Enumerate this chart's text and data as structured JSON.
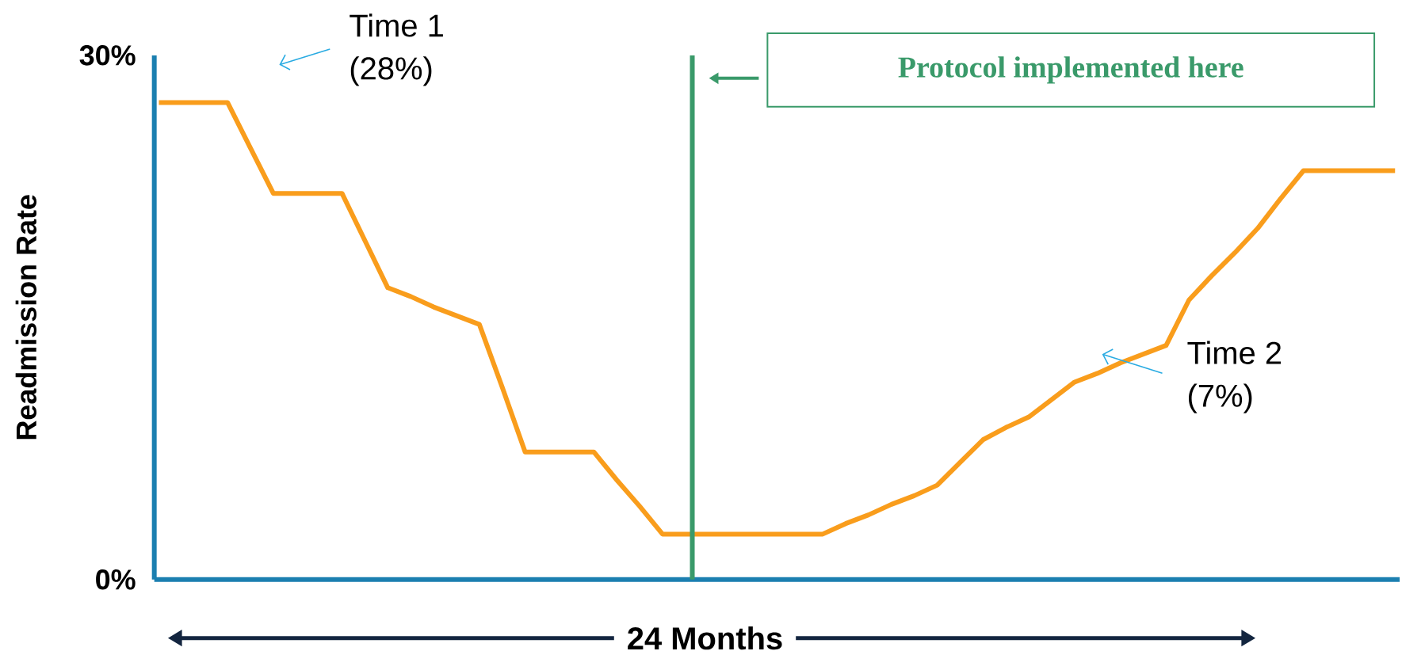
{
  "chart_data": {
    "type": "line",
    "ylabel": "Readmission Rate",
    "xlabel": "24 Months",
    "ylim": [
      0,
      30
    ],
    "tick_labels": "y",
    "yticks": [
      {
        "value": 0,
        "label": "0%"
      },
      {
        "value": 30,
        "label": "30%"
      }
    ],
    "categories": [
      null,
      null,
      null,
      null,
      null,
      null,
      null,
      null,
      null,
      null,
      null,
      null,
      null,
      null,
      null,
      null,
      null,
      null,
      null,
      null,
      null,
      null,
      null,
      null,
      null,
      null,
      null,
      null,
      null,
      null,
      null,
      null,
      null,
      null,
      null,
      null,
      null,
      null,
      null,
      null,
      null,
      null,
      null,
      null,
      null,
      null,
      null,
      null,
      null,
      null,
      null,
      null,
      null,
      null,
      null
    ],
    "series": [
      {
        "color": "#f99d1c",
        "values": [
          27.3,
          27.3,
          27.3,
          27.3,
          24.7,
          22.1,
          22.1,
          22.1,
          22.1,
          19.4,
          16.7,
          16.2,
          15.6,
          15.1,
          14.6,
          11.0,
          7.3,
          7.3,
          7.3,
          7.3,
          5.7,
          4.2,
          2.6,
          2.6,
          2.6,
          2.6,
          2.6,
          2.6,
          2.6,
          2.6,
          3.2,
          3.7,
          4.3,
          4.8,
          5.4,
          6.7,
          8.0,
          8.7,
          9.3,
          10.3,
          11.3,
          11.8,
          12.4,
          12.9,
          13.4,
          16.0,
          17.4,
          18.7,
          20.1,
          21.8,
          23.4,
          23.4,
          23.4,
          23.4,
          23.4
        ]
      }
    ],
    "annotations": [
      "Time 1",
      "(28%)",
      "Time 2",
      "(7%)",
      "Protocol implemented here"
    ]
  }
}
